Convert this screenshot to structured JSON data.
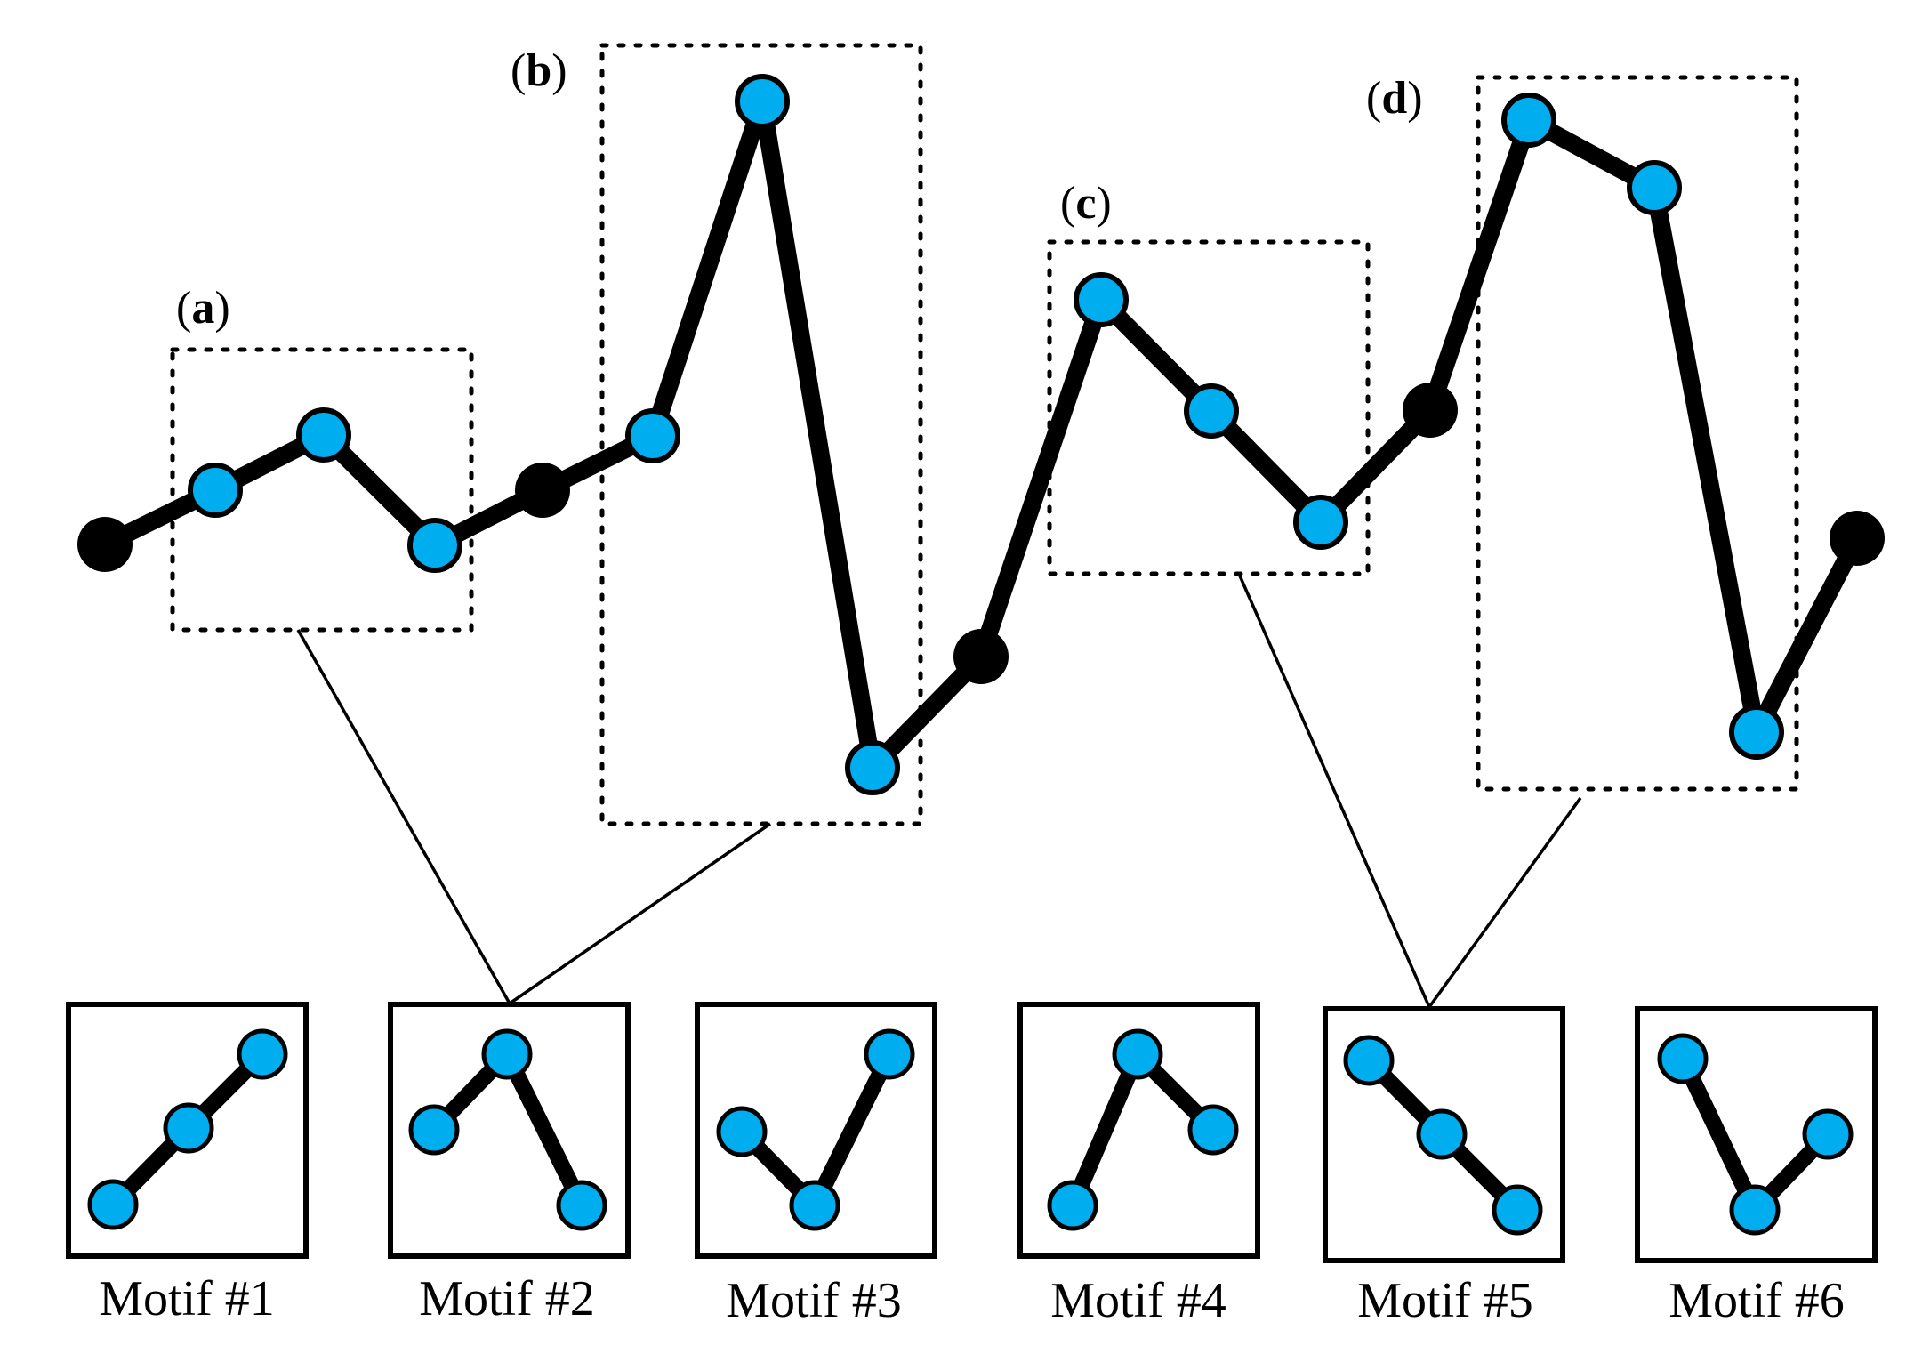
{
  "colors": {
    "highlight_node": "#00AEEF",
    "plain_node": "#000000",
    "line": "#000000",
    "background": "#FFFFFF"
  },
  "series": {
    "nodes": [
      {
        "id": 0,
        "highlighted": false
      },
      {
        "id": 1,
        "highlighted": true
      },
      {
        "id": 2,
        "highlighted": true
      },
      {
        "id": 3,
        "highlighted": true
      },
      {
        "id": 4,
        "highlighted": false
      },
      {
        "id": 5,
        "highlighted": true
      },
      {
        "id": 6,
        "highlighted": true
      },
      {
        "id": 7,
        "highlighted": true
      },
      {
        "id": 8,
        "highlighted": false
      },
      {
        "id": 9,
        "highlighted": true
      },
      {
        "id": 10,
        "highlighted": true
      },
      {
        "id": 11,
        "highlighted": true
      },
      {
        "id": 12,
        "highlighted": false
      },
      {
        "id": 13,
        "highlighted": true
      },
      {
        "id": 14,
        "highlighted": true
      },
      {
        "id": 15,
        "highlighted": true
      },
      {
        "id": 16,
        "highlighted": false
      }
    ]
  },
  "regions": [
    {
      "id": "a",
      "label_open": "(",
      "label_letter": "a",
      "label_close": ")",
      "maps_to_motif": 2
    },
    {
      "id": "b",
      "label_open": "(",
      "label_letter": "b",
      "label_close": ")",
      "maps_to_motif": 2
    },
    {
      "id": "c",
      "label_open": "(",
      "label_letter": "c",
      "label_close": ")",
      "maps_to_motif": 5
    },
    {
      "id": "d",
      "label_open": "(",
      "label_letter": "d",
      "label_close": ")",
      "maps_to_motif": 5
    }
  ],
  "motifs": [
    {
      "number": 1,
      "label": "Motif #1",
      "shape": "up-up"
    },
    {
      "number": 2,
      "label": "Motif #2",
      "shape": "up-down"
    },
    {
      "number": 3,
      "label": "Motif #3",
      "shape": "down-up"
    },
    {
      "number": 4,
      "label": "Motif #4",
      "shape": "up-down"
    },
    {
      "number": 5,
      "label": "Motif #5",
      "shape": "down-down"
    },
    {
      "number": 6,
      "label": "Motif #6",
      "shape": "down-up"
    }
  ]
}
